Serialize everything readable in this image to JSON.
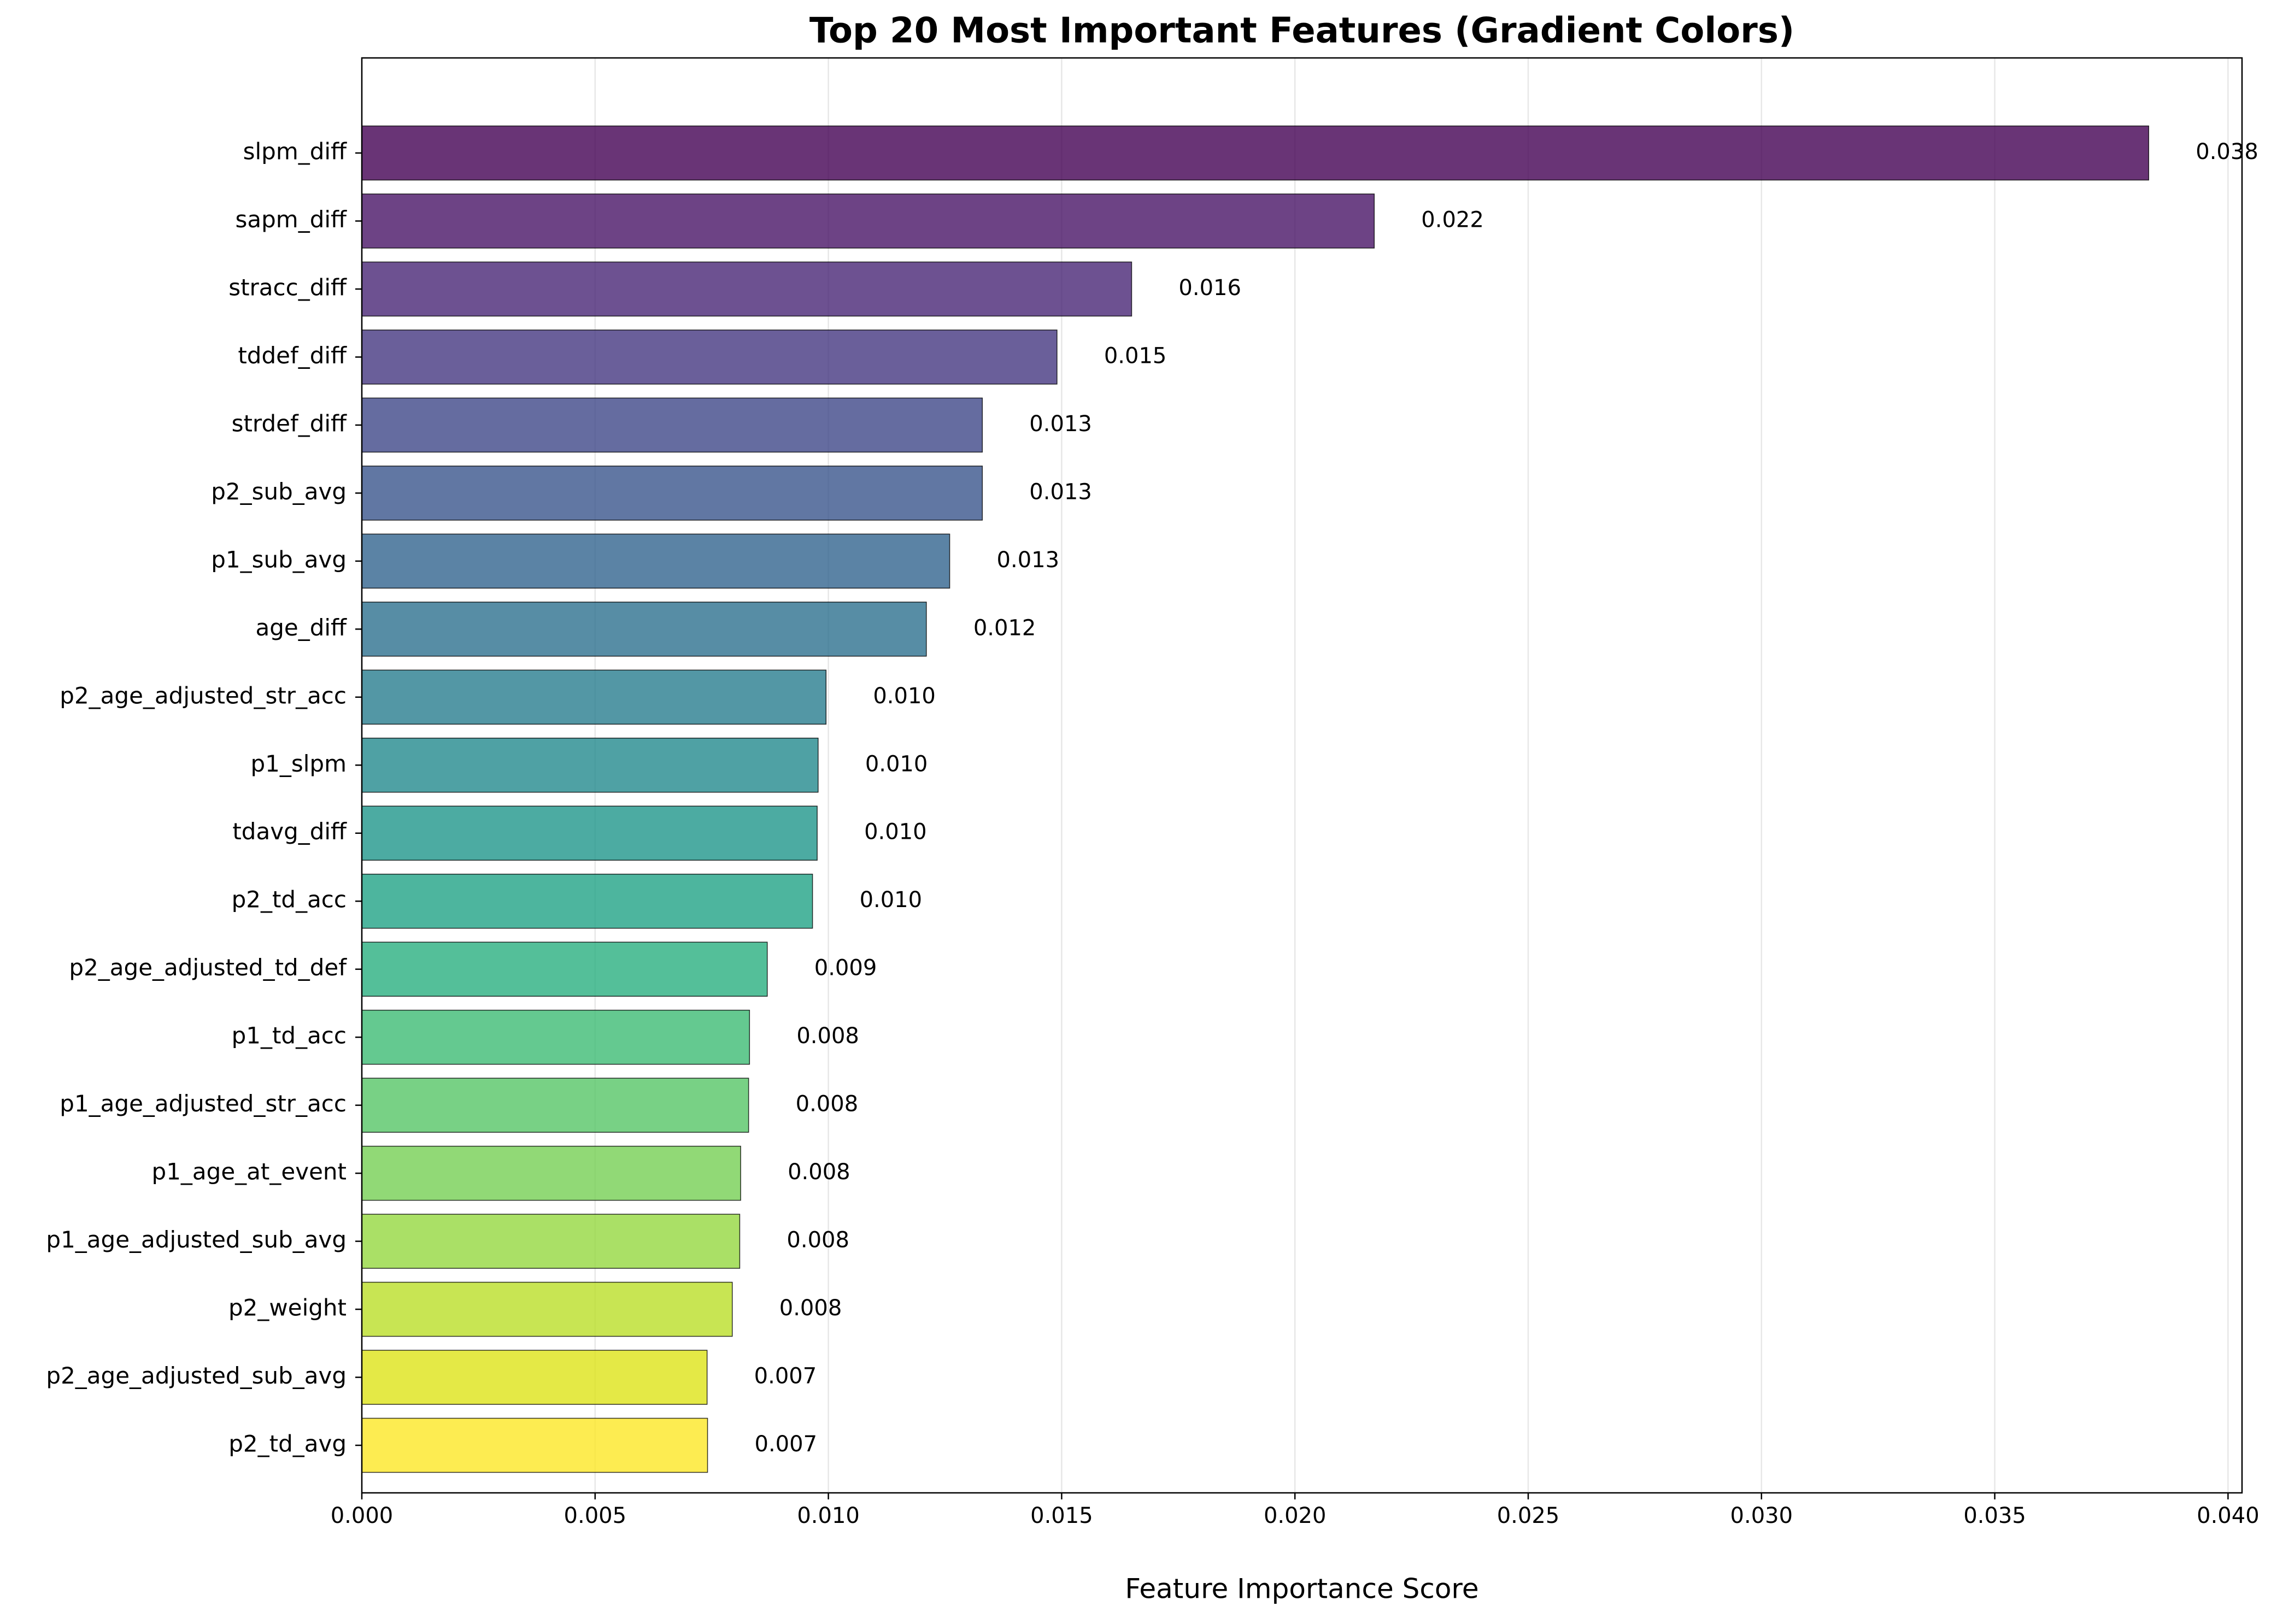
{
  "chart_data": {
    "type": "bar",
    "orientation": "horizontal",
    "title": "Top 20 Most Important Features (Gradient Colors)",
    "xlabel": "Feature Importance Score",
    "ylabel": "",
    "xlim": [
      0,
      0.0403
    ],
    "xticks": [
      0.0,
      0.005,
      0.01,
      0.015,
      0.02,
      0.025,
      0.03,
      0.035,
      0.04
    ],
    "xtick_labels": [
      "0.000",
      "0.005",
      "0.010",
      "0.015",
      "0.020",
      "0.025",
      "0.030",
      "0.035",
      "0.040"
    ],
    "grid": "vertical, x-axis only",
    "legend": "none",
    "colormap": "viridis",
    "categories": [
      "slpm_diff",
      "sapm_diff",
      "stracc_diff",
      "tddef_diff",
      "strdef_diff",
      "p2_sub_avg",
      "p1_sub_avg",
      "age_diff",
      "p2_age_adjusted_str_acc",
      "p1_slpm",
      "tdavg_diff",
      "p2_td_acc",
      "p2_age_adjusted_td_def",
      "p1_td_acc",
      "p1_age_adjusted_str_acc",
      "p1_age_at_event",
      "p1_age_adjusted_sub_avg",
      "p2_weight",
      "p2_age_adjusted_sub_avg",
      "p2_td_avg"
    ],
    "values": [
      0.0383,
      0.0217,
      0.0165,
      0.0149,
      0.0133,
      0.0133,
      0.0126,
      0.0121,
      0.00995,
      0.00978,
      0.00976,
      0.00966,
      0.00869,
      0.00831,
      0.00829,
      0.00812,
      0.0081,
      0.00794,
      0.0074,
      0.00741
    ],
    "data_labels": [
      "0.038",
      "0.022",
      "0.016",
      "0.015",
      "0.013",
      "0.013",
      "0.013",
      "0.012",
      "0.010",
      "0.010",
      "0.010",
      "0.010",
      "0.009",
      "0.008",
      "0.008",
      "0.008",
      "0.008",
      "0.008",
      "0.007",
      "0.007"
    ],
    "bar_colors": [
      "#440154",
      "#481467",
      "#482576",
      "#453781",
      "#3f4788",
      "#39558c",
      "#32648e",
      "#2d718e",
      "#287d8e",
      "#238a8d",
      "#1f968b",
      "#20a386",
      "#29af7f",
      "#3dbc74",
      "#56c667",
      "#75d054",
      "#95d840",
      "#bade28",
      "#dde318",
      "#fde725"
    ],
    "bar_opacity": 0.8,
    "bar_edge_color": "#000000"
  }
}
